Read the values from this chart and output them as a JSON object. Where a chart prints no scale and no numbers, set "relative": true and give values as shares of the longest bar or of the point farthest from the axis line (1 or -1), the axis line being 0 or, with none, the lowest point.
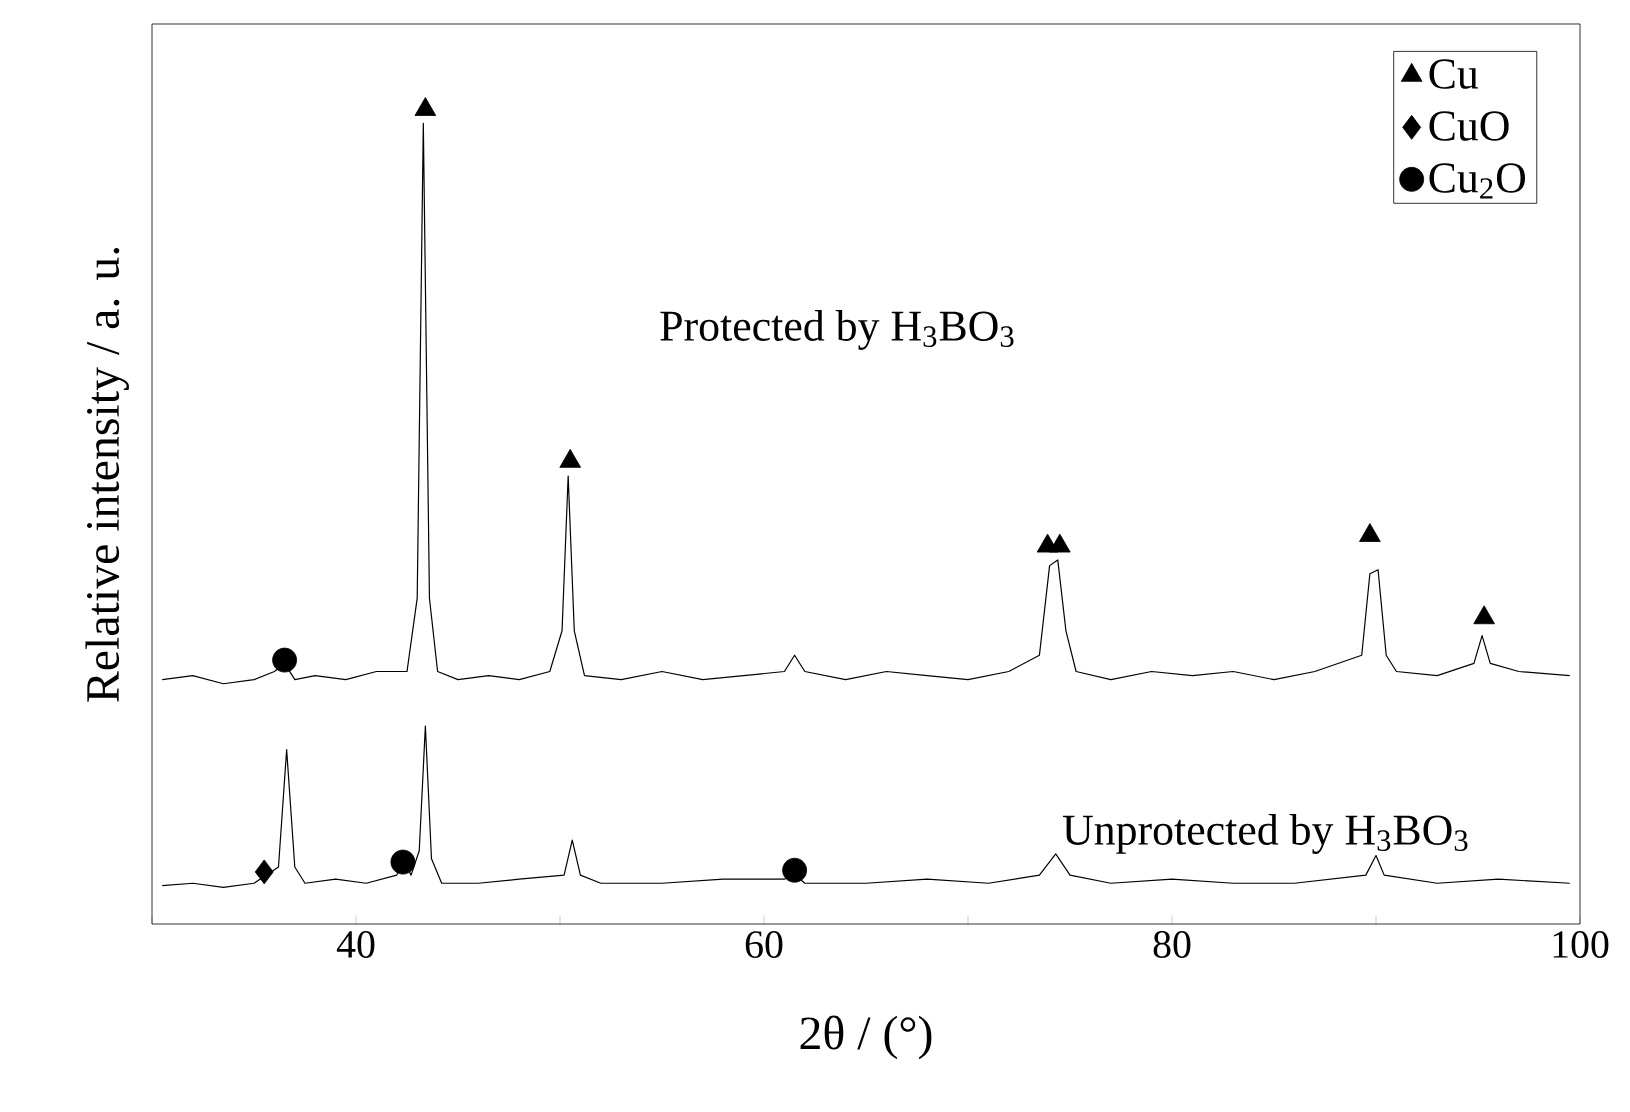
{
  "chart_data": {
    "type": "line",
    "relative": true,
    "xlabel": "2θ / (°)",
    "ylabel": "Relative intensity / a. u.",
    "xlim": [
      30,
      100
    ],
    "xticks": [
      {
        "value": 30,
        "label": null
      },
      40,
      {
        "value": 50,
        "label": null
      },
      60,
      {
        "value": 70,
        "label": null
      },
      80,
      {
        "value": 90,
        "label": null
      },
      100
    ],
    "legend": "top right",
    "grid": false,
    "series": [
      {
        "color": "#000000",
        "x": [
          30.5,
          32,
          33.5,
          35,
          36,
          36.5,
          37,
          38,
          39.5,
          41,
          42.5,
          43.0,
          43.3,
          43.6,
          44.0,
          45,
          46.5,
          48,
          49.5,
          50.1,
          50.4,
          50.7,
          51.2,
          53,
          55,
          57,
          59,
          61,
          61.5,
          62,
          64,
          66,
          68,
          70,
          72,
          73.5,
          74.0,
          74.4,
          74.8,
          75.3,
          77,
          79,
          81,
          83,
          85,
          87,
          89.3,
          89.7,
          90.1,
          90.5,
          91,
          93,
          94.8,
          95.2,
          95.6,
          97,
          99.5
        ],
        "values": [
          0.3,
          0.305,
          0.295,
          0.3,
          0.31,
          0.32,
          0.3,
          0.305,
          0.3,
          0.31,
          0.31,
          0.4,
          0.983,
          0.4,
          0.31,
          0.3,
          0.305,
          0.3,
          0.31,
          0.36,
          0.55,
          0.36,
          0.305,
          0.3,
          0.31,
          0.3,
          0.305,
          0.31,
          0.33,
          0.31,
          0.3,
          0.31,
          0.305,
          0.3,
          0.31,
          0.33,
          0.44,
          0.447,
          0.36,
          0.31,
          0.3,
          0.31,
          0.305,
          0.31,
          0.3,
          0.31,
          0.33,
          0.43,
          0.435,
          0.33,
          0.31,
          0.305,
          0.32,
          0.354,
          0.32,
          0.31,
          0.305
        ]
      },
      {
        "color": "#000000",
        "x": [
          30.5,
          32,
          33.5,
          35,
          36.2,
          36.6,
          37.0,
          37.5,
          39,
          40.5,
          42.0,
          42.3,
          42.7,
          43.1,
          43.4,
          43.7,
          44.2,
          46,
          48,
          50.2,
          50.6,
          51.0,
          52,
          55,
          58,
          61,
          61.5,
          62,
          65,
          68,
          71,
          73.5,
          74.3,
          75,
          77,
          80,
          83,
          86,
          89.5,
          90,
          90.4,
          93,
          96,
          99.5
        ],
        "values": [
          0.047,
          0.05,
          0.045,
          0.05,
          0.07,
          0.214,
          0.07,
          0.05,
          0.055,
          0.05,
          0.06,
          0.079,
          0.06,
          0.09,
          0.243,
          0.08,
          0.05,
          0.05,
          0.055,
          0.06,
          0.103,
          0.06,
          0.05,
          0.05,
          0.055,
          0.055,
          0.061,
          0.05,
          0.05,
          0.055,
          0.05,
          0.06,
          0.086,
          0.06,
          0.05,
          0.055,
          0.05,
          0.05,
          0.06,
          0.084,
          0.06,
          0.05,
          0.055,
          0.05
        ]
      },
      {
        "type": "scatter",
        "name": "Cu",
        "marker": "triangle",
        "color": "#000000",
        "x": [
          43.4,
          50.5,
          73.9,
          74.5,
          89.7,
          95.3
        ],
        "values": [
          1.0,
          0.568,
          0.464,
          0.464,
          0.477,
          0.376
        ]
      },
      {
        "type": "scatter",
        "name": "CuO",
        "marker": "diamond",
        "color": "#000000",
        "x": [
          35.5
        ],
        "values": [
          0.064
        ]
      },
      {
        "type": "scatter",
        "name": "Cu$_{2}$O",
        "marker": "circle",
        "color": "#000000",
        "x": [
          36.5,
          42.3,
          61.5
        ],
        "values": [
          0.324,
          0.076,
          0.066
        ]
      }
    ],
    "annotations": [
      "Protected by H$_{3}$BO$_{3}$",
      "Unprotected by H$_{3}$BO$_{3}$"
    ]
  }
}
